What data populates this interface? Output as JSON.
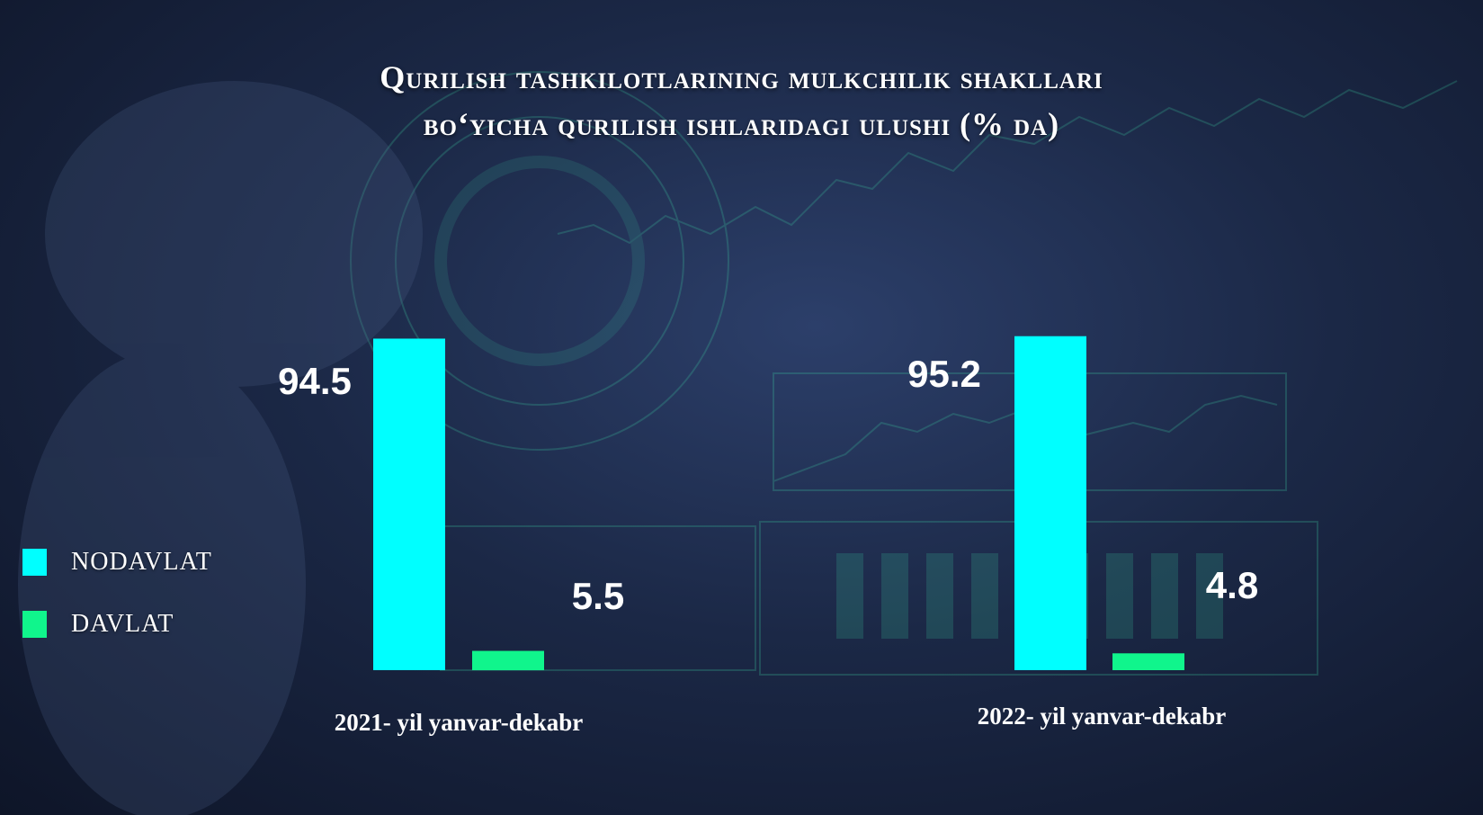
{
  "chart_data": {
    "type": "bar",
    "title_line1": "Qurilish tashkilotlarining mulkchilik shakllari",
    "title_line2": "bo‘yicha qurilish  ishlaridagi ulushi (% da)",
    "categories": [
      "2021- yil yanvar-dekabr",
      "2022- yil yanvar-dekabr"
    ],
    "series": [
      {
        "name": "NODAVLAT",
        "color": "#00ffff",
        "values": [
          94.5,
          95.2
        ]
      },
      {
        "name": "DAVLAT",
        "color": "#10f58c",
        "values": [
          5.5,
          4.8
        ]
      }
    ],
    "ylim": [
      0,
      100
    ],
    "grid": false,
    "legend_position": "left"
  }
}
